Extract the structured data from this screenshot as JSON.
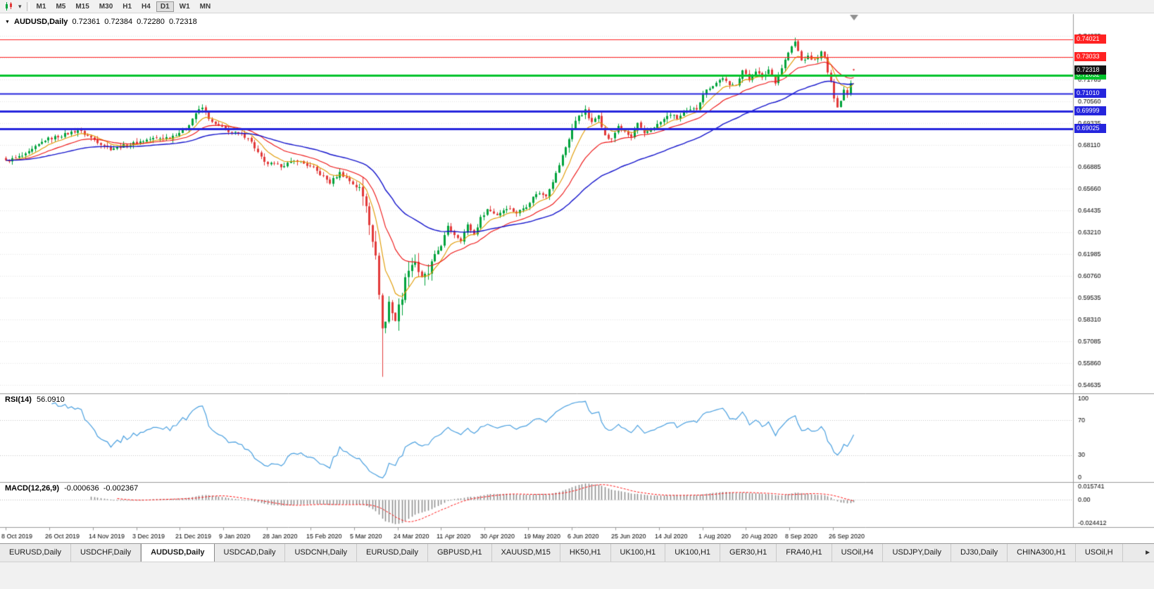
{
  "toolbar": {
    "chart_icon": "candlestick-chart-icon",
    "dropdown_icon": "▾",
    "timeframes": [
      {
        "label": "M1",
        "active": false
      },
      {
        "label": "M5",
        "active": false
      },
      {
        "label": "M15",
        "active": false
      },
      {
        "label": "M30",
        "active": false
      },
      {
        "label": "H1",
        "active": false
      },
      {
        "label": "H4",
        "active": false
      },
      {
        "label": "D1",
        "active": true
      },
      {
        "label": "W1",
        "active": false
      },
      {
        "label": "MN",
        "active": false
      }
    ]
  },
  "chart": {
    "collapse_icon": "▼",
    "title": {
      "symbol": "AUDUSD,Daily",
      "open": "0.72361",
      "high": "0.72384",
      "low": "0.72280",
      "close": "0.72318"
    }
  },
  "indicators": {
    "rsi": {
      "name": "RSI(14)",
      "value": "56.0910",
      "scale_labels": [
        "100",
        "70",
        "30",
        "0"
      ]
    },
    "macd": {
      "name": "MACD(12,26,9)",
      "value_main": "-0.000636",
      "value_signal": "-0.002367",
      "scale_labels": [
        "0.015741",
        "0.00",
        "-0.024412"
      ]
    }
  },
  "tabs": {
    "scroll_icon": "►",
    "items": [
      {
        "label": "EURUSD,Daily"
      },
      {
        "label": "USDCHF,Daily"
      },
      {
        "label": "AUDUSD,Daily",
        "active": true
      },
      {
        "label": "USDCAD,Daily"
      },
      {
        "label": "USDCNH,Daily"
      },
      {
        "label": "EURUSD,Daily"
      },
      {
        "label": "GBPUSD,H1"
      },
      {
        "label": "XAUUSD,M15"
      },
      {
        "label": "HK50,H1"
      },
      {
        "label": "UK100,H1"
      },
      {
        "label": "UK100,H1"
      },
      {
        "label": "GER30,H1"
      },
      {
        "label": "FRA40,H1"
      },
      {
        "label": "USOil,H4"
      },
      {
        "label": "USDJPY,Daily"
      },
      {
        "label": "DJ30,Daily"
      },
      {
        "label": "CHINA300,H1"
      },
      {
        "label": "USOil,H"
      }
    ]
  },
  "chart_data": {
    "type": "candlestick",
    "symbol": "AUDUSD",
    "period": "Daily",
    "bar_count": 260,
    "current_ohlc": {
      "open": 0.72361,
      "high": 0.72384,
      "low": 0.7228,
      "close": 0.72318
    },
    "current_bid": 0.72318,
    "visible_price_range": {
      "top": 0.7546,
      "bottom": 0.5421
    },
    "y_axis_ticks": [
      "0.74235",
      "0.73010",
      "0.71785",
      "0.70560",
      "0.69335",
      "0.68110",
      "0.66885",
      "0.65660",
      "0.64435",
      "0.63210",
      "0.61985",
      "0.60760",
      "0.59535",
      "0.58310",
      "0.57085",
      "0.55860",
      "0.54635"
    ],
    "x_axis_dates": [
      "8 Oct 2019",
      "26 Oct 2019",
      "14 Nov 2019",
      "3 Dec 2019",
      "21 Dec 2019",
      "9 Jan 2020",
      "28 Jan 2020",
      "15 Feb 2020",
      "5 Mar 2020",
      "24 Mar 2020",
      "11 Apr 2020",
      "30 Apr 2020",
      "19 May 2020",
      "6 Jun 2020",
      "25 Jun 2020",
      "14 Jul 2020",
      "1 Aug 2020",
      "20 Aug 2020",
      "8 Sep 2020",
      "26 Sep 2020"
    ],
    "horizontal_levels": [
      {
        "price": 0.74021,
        "label": "0.74021",
        "color": "#ff2222",
        "width": 1
      },
      {
        "price": 0.73033,
        "label": "0.73033",
        "color": "#ff2222",
        "width": 1
      },
      {
        "price": 0.72032,
        "label": "0.72032",
        "color": "#00c32b",
        "width": 3
      },
      {
        "price": 0.7101,
        "label": "0.71010",
        "color": "#2525dd",
        "width": 2
      },
      {
        "price": 0.69999,
        "label": "0.69999",
        "color": "#2525dd",
        "width": 3
      },
      {
        "price": 0.69025,
        "label": "0.69025",
        "color": "#2525dd",
        "width": 3
      }
    ],
    "moving_averages": [
      {
        "type": "ema",
        "period": 8,
        "color": "#e09a00"
      },
      {
        "type": "ema",
        "period": 20,
        "color": "#ee1111"
      },
      {
        "type": "ema",
        "period": 50,
        "color": "#1414cc"
      }
    ],
    "price_path_anchors": [
      [
        0,
        0.672
      ],
      [
        6,
        0.6755
      ],
      [
        12,
        0.684
      ],
      [
        18,
        0.687
      ],
      [
        22,
        0.6895
      ],
      [
        27,
        0.684
      ],
      [
        32,
        0.679
      ],
      [
        38,
        0.6815
      ],
      [
        44,
        0.6845
      ],
      [
        50,
        0.6855
      ],
      [
        55,
        0.69
      ],
      [
        58,
        0.699
      ],
      [
        60,
        0.702
      ],
      [
        63,
        0.6935
      ],
      [
        68,
        0.689
      ],
      [
        74,
        0.6855
      ],
      [
        79,
        0.671
      ],
      [
        84,
        0.6695
      ],
      [
        89,
        0.6725
      ],
      [
        94,
        0.668
      ],
      [
        99,
        0.66
      ],
      [
        102,
        0.6655
      ],
      [
        105,
        0.661
      ],
      [
        108,
        0.656
      ],
      [
        110,
        0.648
      ],
      [
        112,
        0.629
      ],
      [
        113,
        0.617
      ],
      [
        114,
        0.599
      ],
      [
        115,
        0.578
      ],
      [
        116,
        0.582
      ],
      [
        117,
        0.593
      ],
      [
        119,
        0.583
      ],
      [
        121,
        0.597
      ],
      [
        123,
        0.613
      ],
      [
        125,
        0.616
      ],
      [
        127,
        0.605
      ],
      [
        129,
        0.609
      ],
      [
        131,
        0.619
      ],
      [
        133,
        0.625
      ],
      [
        135,
        0.635
      ],
      [
        137,
        0.631
      ],
      [
        139,
        0.628
      ],
      [
        141,
        0.636
      ],
      [
        143,
        0.631
      ],
      [
        145,
        0.64
      ],
      [
        147,
        0.645
      ],
      [
        150,
        0.642
      ],
      [
        153,
        0.646
      ],
      [
        156,
        0.643
      ],
      [
        159,
        0.647
      ],
      [
        162,
        0.654
      ],
      [
        165,
        0.653
      ],
      [
        168,
        0.665
      ],
      [
        171,
        0.68
      ],
      [
        173,
        0.69
      ],
      [
        175,
        0.698
      ],
      [
        177,
        0.7
      ],
      [
        179,
        0.693
      ],
      [
        181,
        0.699
      ],
      [
        183,
        0.686
      ],
      [
        185,
        0.684
      ],
      [
        187,
        0.692
      ],
      [
        189,
        0.688
      ],
      [
        191,
        0.6855
      ],
      [
        193,
        0.693
      ],
      [
        195,
        0.687
      ],
      [
        197,
        0.6905
      ],
      [
        199,
        0.6925
      ],
      [
        201,
        0.6955
      ],
      [
        203,
        0.6985
      ],
      [
        205,
        0.696
      ],
      [
        207,
        0.699
      ],
      [
        209,
        0.7005
      ],
      [
        211,
        0.7015
      ],
      [
        213,
        0.71
      ],
      [
        215,
        0.7135
      ],
      [
        217,
        0.716
      ],
      [
        219,
        0.719
      ],
      [
        221,
        0.714
      ],
      [
        223,
        0.7155
      ],
      [
        225,
        0.723
      ],
      [
        227,
        0.7175
      ],
      [
        229,
        0.723
      ],
      [
        231,
        0.7185
      ],
      [
        233,
        0.7235
      ],
      [
        235,
        0.7165
      ],
      [
        237,
        0.7245
      ],
      [
        239,
        0.733
      ],
      [
        241,
        0.739
      ],
      [
        243,
        0.7285
      ],
      [
        245,
        0.7305
      ],
      [
        247,
        0.7285
      ],
      [
        249,
        0.733
      ],
      [
        250,
        0.73
      ],
      [
        251,
        0.722
      ],
      [
        252,
        0.716
      ],
      [
        253,
        0.708
      ],
      [
        254,
        0.703
      ],
      [
        255,
        0.706
      ],
      [
        256,
        0.712
      ],
      [
        257,
        0.71
      ],
      [
        258,
        0.716
      ],
      [
        259,
        0.7232
      ]
    ],
    "special_points": {
      "crash_low_bar": 115,
      "crash_low": 0.551,
      "peak_high_bar": 241,
      "peak_high": 0.7414
    },
    "base_volatility": {
      "body": 0.0013,
      "wick": 0.0022
    },
    "volatility_zones": [
      {
        "from": 108,
        "to": 130,
        "body": 0.004,
        "wick": 0.006
      },
      {
        "from": 171,
        "to": 186,
        "body": 0.002,
        "wick": 0.003
      }
    ],
    "candle_up_color": "#00a33c",
    "candle_down_color": "#e23a3a",
    "rsi": {
      "period": 14,
      "current": 56.091,
      "color": "#4aa0e0",
      "levels": [
        70,
        30
      ],
      "range": [
        0,
        100
      ]
    },
    "macd": {
      "fast": 12,
      "slow": 26,
      "signal_period": 9,
      "current_main": -0.000636,
      "current_signal": -0.002367,
      "scale_max": 0.015741,
      "scale_min": -0.024412,
      "histogram_color": "#8a8a8a",
      "signal_color": "#ff1111"
    }
  }
}
